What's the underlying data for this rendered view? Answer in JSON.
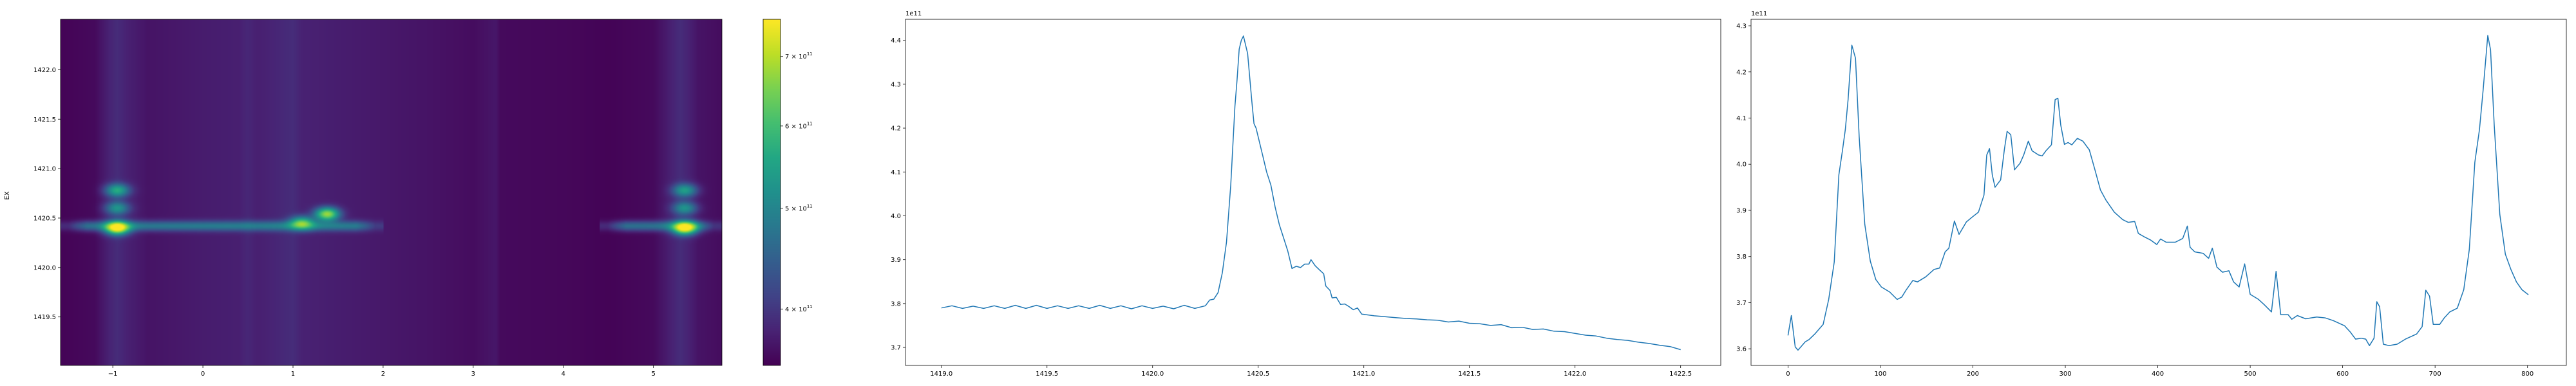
{
  "colors": {
    "line": "#1f77b4",
    "colormap": "viridis",
    "axes": "#000000"
  },
  "chart_data": [
    {
      "type": "heatmap",
      "ylabel": "EX",
      "xlabel": "",
      "xlim": [
        -1.58,
        5.76
      ],
      "ylim": [
        1419.01,
        1422.51
      ],
      "xticks": [
        -1,
        0,
        1,
        2,
        3,
        4,
        5
      ],
      "xtick_labels": [
        "−1",
        "0",
        "1",
        "2",
        "3",
        "4",
        "5"
      ],
      "yticks": [
        1419.5,
        1420.0,
        1420.5,
        1421.0,
        1421.5,
        1422.0
      ],
      "ytick_labels": [
        "1419.5",
        "1420.0",
        "1420.5",
        "1421.0",
        "1421.5",
        "1422.0"
      ],
      "colorbar": {
        "scale": "log",
        "range": [
          353000000000.0,
          760000000000.0
        ],
        "ticks": [
          400000000000.0,
          500000000000.0,
          600000000000.0,
          700000000000.0
        ],
        "tick_labels": [
          {
            "base": "4 × 10",
            "exp": "11"
          },
          {
            "base": "5 × 10",
            "exp": "11"
          },
          {
            "base": "6 × 10",
            "exp": "11"
          },
          {
            "base": "7 × 10",
            "exp": "11"
          }
        ]
      },
      "column_profile": {
        "x": [
          -1.58,
          -1.2,
          -1.05,
          -0.95,
          -0.85,
          -0.6,
          0.0,
          0.4,
          0.5,
          0.6,
          0.7,
          1.0,
          1.1,
          1.5,
          2.0,
          2.5,
          3.0,
          3.22,
          3.26,
          3.3,
          4.0,
          4.5,
          5.0,
          5.2,
          5.3,
          5.4,
          5.5,
          5.76
        ],
        "values": [
          355000000000.0,
          360000000000.0,
          380000000000.0,
          390000000000.0,
          380000000000.0,
          368000000000.0,
          375000000000.0,
          378000000000.0,
          385000000000.0,
          378000000000.0,
          380000000000.0,
          390000000000.0,
          380000000000.0,
          376000000000.0,
          372000000000.0,
          368000000000.0,
          362000000000.0,
          370000000000.0,
          370000000000.0,
          360000000000.0,
          358000000000.0,
          355000000000.0,
          360000000000.0,
          380000000000.0,
          390000000000.0,
          380000000000.0,
          368000000000.0,
          362000000000.0
        ]
      },
      "ridges": [
        {
          "y": 1420.42,
          "x_from": -1.58,
          "x_to": 2.0,
          "value": 480000000000.0
        },
        {
          "y": 1420.42,
          "x_from": 4.4,
          "x_to": 5.76,
          "value": 480000000000.0
        }
      ],
      "hotspots": [
        {
          "x": -0.95,
          "y": 1420.4,
          "value": 750000000000.0
        },
        {
          "x": -0.95,
          "y": 1420.6,
          "value": 520000000000.0
        },
        {
          "x": -0.95,
          "y": 1420.78,
          "value": 560000000000.0
        },
        {
          "x": 1.38,
          "y": 1420.54,
          "value": 680000000000.0
        },
        {
          "x": 1.1,
          "y": 1420.45,
          "value": 600000000000.0
        },
        {
          "x": 5.35,
          "y": 1420.4,
          "value": 750000000000.0
        },
        {
          "x": 5.35,
          "y": 1420.6,
          "value": 520000000000.0
        },
        {
          "x": 5.35,
          "y": 1420.78,
          "value": 540000000000.0
        }
      ]
    },
    {
      "type": "line",
      "offset_label": "1e11",
      "xlim": [
        1418.83,
        1422.69
      ],
      "ylim": [
        3.659,
        4.448
      ],
      "xticks": [
        1419.0,
        1419.5,
        1420.0,
        1420.5,
        1421.0,
        1421.5,
        1422.0,
        1422.5
      ],
      "xtick_labels": [
        "1419.0",
        "1419.5",
        "1420.0",
        "1420.5",
        "1421.0",
        "1421.5",
        "1422.0",
        "1422.5"
      ],
      "yticks": [
        3.7,
        3.8,
        3.9,
        4.0,
        4.1,
        4.2,
        4.3,
        4.4
      ],
      "ytick_labels": [
        "3.7",
        "3.8",
        "3.9",
        "4.0",
        "4.1",
        "4.2",
        "4.3",
        "4.4"
      ],
      "x": [
        1419.0,
        1419.05,
        1419.1,
        1419.15,
        1419.2,
        1419.25,
        1419.3,
        1419.35,
        1419.4,
        1419.45,
        1419.5,
        1419.55,
        1419.6,
        1419.65,
        1419.7,
        1419.75,
        1419.8,
        1419.85,
        1419.9,
        1419.95,
        1420.0,
        1420.05,
        1420.1,
        1420.15,
        1420.2,
        1420.25,
        1420.27,
        1420.29,
        1420.31,
        1420.33,
        1420.35,
        1420.37,
        1420.39,
        1420.4,
        1420.41,
        1420.42,
        1420.43,
        1420.45,
        1420.47,
        1420.48,
        1420.49,
        1420.52,
        1420.54,
        1420.56,
        1420.58,
        1420.6,
        1420.62,
        1420.64,
        1420.66,
        1420.68,
        1420.7,
        1420.72,
        1420.74,
        1420.75,
        1420.77,
        1420.79,
        1420.81,
        1420.82,
        1420.84,
        1420.85,
        1420.87,
        1420.89,
        1420.91,
        1420.93,
        1420.95,
        1420.97,
        1420.99,
        1421.05,
        1421.1,
        1421.15,
        1421.2,
        1421.25,
        1421.3,
        1421.35,
        1421.4,
        1421.45,
        1421.5,
        1421.55,
        1421.6,
        1421.65,
        1421.7,
        1421.75,
        1421.8,
        1421.85,
        1421.9,
        1421.95,
        1422.0,
        1422.05,
        1422.1,
        1422.15,
        1422.2,
        1422.25,
        1422.3,
        1422.35,
        1422.4,
        1422.45,
        1422.5
      ],
      "y": [
        3.79,
        3.795,
        3.789,
        3.794,
        3.789,
        3.795,
        3.789,
        3.796,
        3.789,
        3.796,
        3.789,
        3.795,
        3.789,
        3.795,
        3.789,
        3.796,
        3.789,
        3.795,
        3.788,
        3.795,
        3.789,
        3.794,
        3.788,
        3.796,
        3.789,
        3.795,
        3.808,
        3.81,
        3.825,
        3.87,
        3.94,
        4.07,
        4.25,
        4.31,
        4.38,
        4.4,
        4.41,
        4.37,
        4.26,
        4.21,
        4.2,
        4.14,
        4.1,
        4.07,
        4.02,
        3.98,
        3.95,
        3.92,
        3.88,
        3.885,
        3.882,
        3.89,
        3.89,
        3.9,
        3.886,
        3.877,
        3.868,
        3.84,
        3.83,
        3.813,
        3.814,
        3.798,
        3.799,
        3.793,
        3.786,
        3.79,
        3.776,
        3.772,
        3.77,
        3.768,
        3.766,
        3.765,
        3.763,
        3.762,
        3.758,
        3.76,
        3.755,
        3.754,
        3.75,
        3.752,
        3.745,
        3.746,
        3.741,
        3.742,
        3.737,
        3.736,
        3.732,
        3.728,
        3.726,
        3.721,
        3.718,
        3.716,
        3.712,
        3.709,
        3.705,
        3.702,
        3.695
      ]
    },
    {
      "type": "line",
      "offset_label": "1e11",
      "xlim": [
        -40,
        842
      ],
      "ylim": [
        3.564,
        4.314
      ],
      "xticks": [
        0,
        100,
        200,
        300,
        400,
        500,
        600,
        700,
        800
      ],
      "xtick_labels": [
        "0",
        "100",
        "200",
        "300",
        "400",
        "500",
        "600",
        "700",
        "800"
      ],
      "yticks": [
        3.6,
        3.7,
        3.8,
        3.9,
        4.0,
        4.1,
        4.2,
        4.3
      ],
      "ytick_labels": [
        "3.6",
        "3.7",
        "3.8",
        "3.9",
        "4.0",
        "4.1",
        "4.2",
        "4.3"
      ],
      "x": [
        0,
        3.6,
        7.8,
        10.8,
        18.6,
        22.8,
        29,
        38,
        44,
        50,
        55,
        59,
        62,
        65,
        69,
        73,
        77,
        83,
        89,
        95,
        101,
        110,
        118,
        123,
        128,
        135,
        140,
        149,
        158,
        164,
        170,
        174,
        180,
        185,
        193,
        199,
        206,
        212,
        215,
        218,
        221,
        224,
        230,
        234,
        237,
        241,
        245,
        251,
        255,
        260,
        264,
        271,
        275,
        279,
        285,
        289,
        292,
        295,
        299,
        303,
        307,
        313,
        319,
        326,
        332,
        338,
        344,
        353,
        362,
        368,
        375,
        379,
        386,
        392,
        399,
        403,
        409,
        419,
        427,
        432,
        435,
        440,
        449,
        455,
        459,
        464,
        470,
        477,
        482,
        488,
        494,
        500,
        509,
        515,
        523,
        528,
        533,
        541,
        545,
        551,
        560,
        572,
        581,
        590,
        602,
        608,
        614,
        620,
        625,
        629,
        634,
        637,
        640,
        644,
        650,
        659,
        668,
        680,
        686,
        690,
        694,
        698,
        705,
        710,
        716,
        724,
        731,
        737,
        743,
        748,
        752,
        757,
        760,
        764,
        770,
        776,
        782,
        788,
        794,
        801
      ],
      "y": [
        3.629,
        3.672,
        3.604,
        3.597,
        3.615,
        3.62,
        3.632,
        3.653,
        3.707,
        3.788,
        3.977,
        4.031,
        4.075,
        4.14,
        4.258,
        4.23,
        4.06,
        3.87,
        3.79,
        3.75,
        3.734,
        3.723,
        3.707,
        3.712,
        3.728,
        3.748,
        3.745,
        3.756,
        3.772,
        3.775,
        3.81,
        3.818,
        3.877,
        3.848,
        3.875,
        3.885,
        3.896,
        3.933,
        4.02,
        4.034,
        3.977,
        3.95,
        3.966,
        4.031,
        4.071,
        4.064,
        3.988,
        4.002,
        4.02,
        4.05,
        4.029,
        4.02,
        4.018,
        4.029,
        4.042,
        4.14,
        4.143,
        4.085,
        4.043,
        4.047,
        4.042,
        4.056,
        4.05,
        4.031,
        3.988,
        3.944,
        3.922,
        3.896,
        3.88,
        3.874,
        3.876,
        3.85,
        3.842,
        3.836,
        3.826,
        3.838,
        3.831,
        3.831,
        3.839,
        3.866,
        3.82,
        3.81,
        3.807,
        3.796,
        3.818,
        3.777,
        3.766,
        3.769,
        3.745,
        3.734,
        3.784,
        3.718,
        3.707,
        3.696,
        3.68,
        3.768,
        3.674,
        3.674,
        3.664,
        3.672,
        3.665,
        3.669,
        3.667,
        3.661,
        3.65,
        3.637,
        3.621,
        3.623,
        3.621,
        3.607,
        3.623,
        3.702,
        3.691,
        3.61,
        3.607,
        3.61,
        3.621,
        3.632,
        3.648,
        3.727,
        3.714,
        3.653,
        3.653,
        3.667,
        3.68,
        3.688,
        3.728,
        3.815,
        4.004,
        4.075,
        4.161,
        4.279,
        4.248,
        4.085,
        3.891,
        3.805,
        3.772,
        3.745,
        3.728,
        3.717
      ]
    }
  ]
}
